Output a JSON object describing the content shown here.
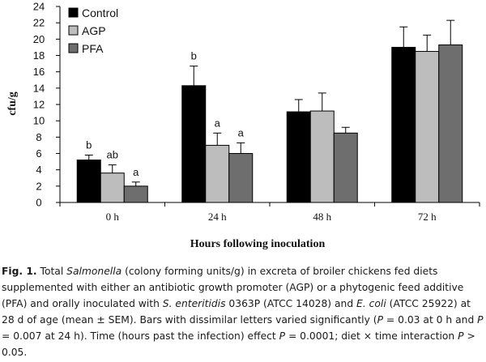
{
  "chart_data": {
    "type": "bar",
    "categories": [
      "0 h",
      "24 h",
      "48 h",
      "72 h"
    ],
    "series": [
      {
        "name": "Control",
        "color": "#000000",
        "values": [
          5.2,
          14.3,
          11.1,
          19.0
        ],
        "errors": [
          0.6,
          2.4,
          1.5,
          2.5
        ],
        "labels": [
          "b",
          "b",
          "",
          ""
        ]
      },
      {
        "name": "AGP",
        "color": "#bdbdbd",
        "values": [
          3.6,
          7.0,
          11.2,
          18.5
        ],
        "errors": [
          1.0,
          1.5,
          2.2,
          2.0
        ],
        "labels": [
          "ab",
          "a",
          "",
          ""
        ]
      },
      {
        "name": "PFA",
        "color": "#6e6e6e",
        "values": [
          2.0,
          6.0,
          8.5,
          19.3
        ],
        "errors": [
          0.5,
          1.3,
          0.7,
          3.0
        ],
        "labels": [
          "a",
          "a",
          "",
          ""
        ]
      }
    ],
    "ylabel": "cfu/g",
    "xlabel": "Hours following inoculation",
    "ylim": [
      0,
      24
    ],
    "yticks": [
      0,
      2,
      4,
      6,
      8,
      10,
      12,
      14,
      16,
      18,
      20,
      22,
      24
    ],
    "grid": false,
    "legend_position": "top-left"
  },
  "caption": {
    "label": "Fig. 1.",
    "t1": "Total ",
    "i1": "Salmonella",
    "t2": " (colony forming units/g) in excreta of broiler chickens fed diets supplemented with either an antibiotic growth promoter (AGP) or a phytogenic feed additive (PFA) and orally inoculated with ",
    "i2": "S. enteritidis",
    "t3": " 0363P (ATCC 14028) and ",
    "i3": "E. coli",
    "t4": " (ATCC 25922) at 28 d of age (mean ± SEM). Bars with dissimilar letters varied significantly (",
    "i4": "P",
    "t5": " = 0.03 at 0 h and ",
    "i5": "P",
    "t6": " = 0.007 at 24 h). Time (hours past the infection) effect ",
    "i6": "P",
    "t7": " = 0.0001; diet × time interaction ",
    "i7": "P",
    "t8": " > 0.05."
  }
}
